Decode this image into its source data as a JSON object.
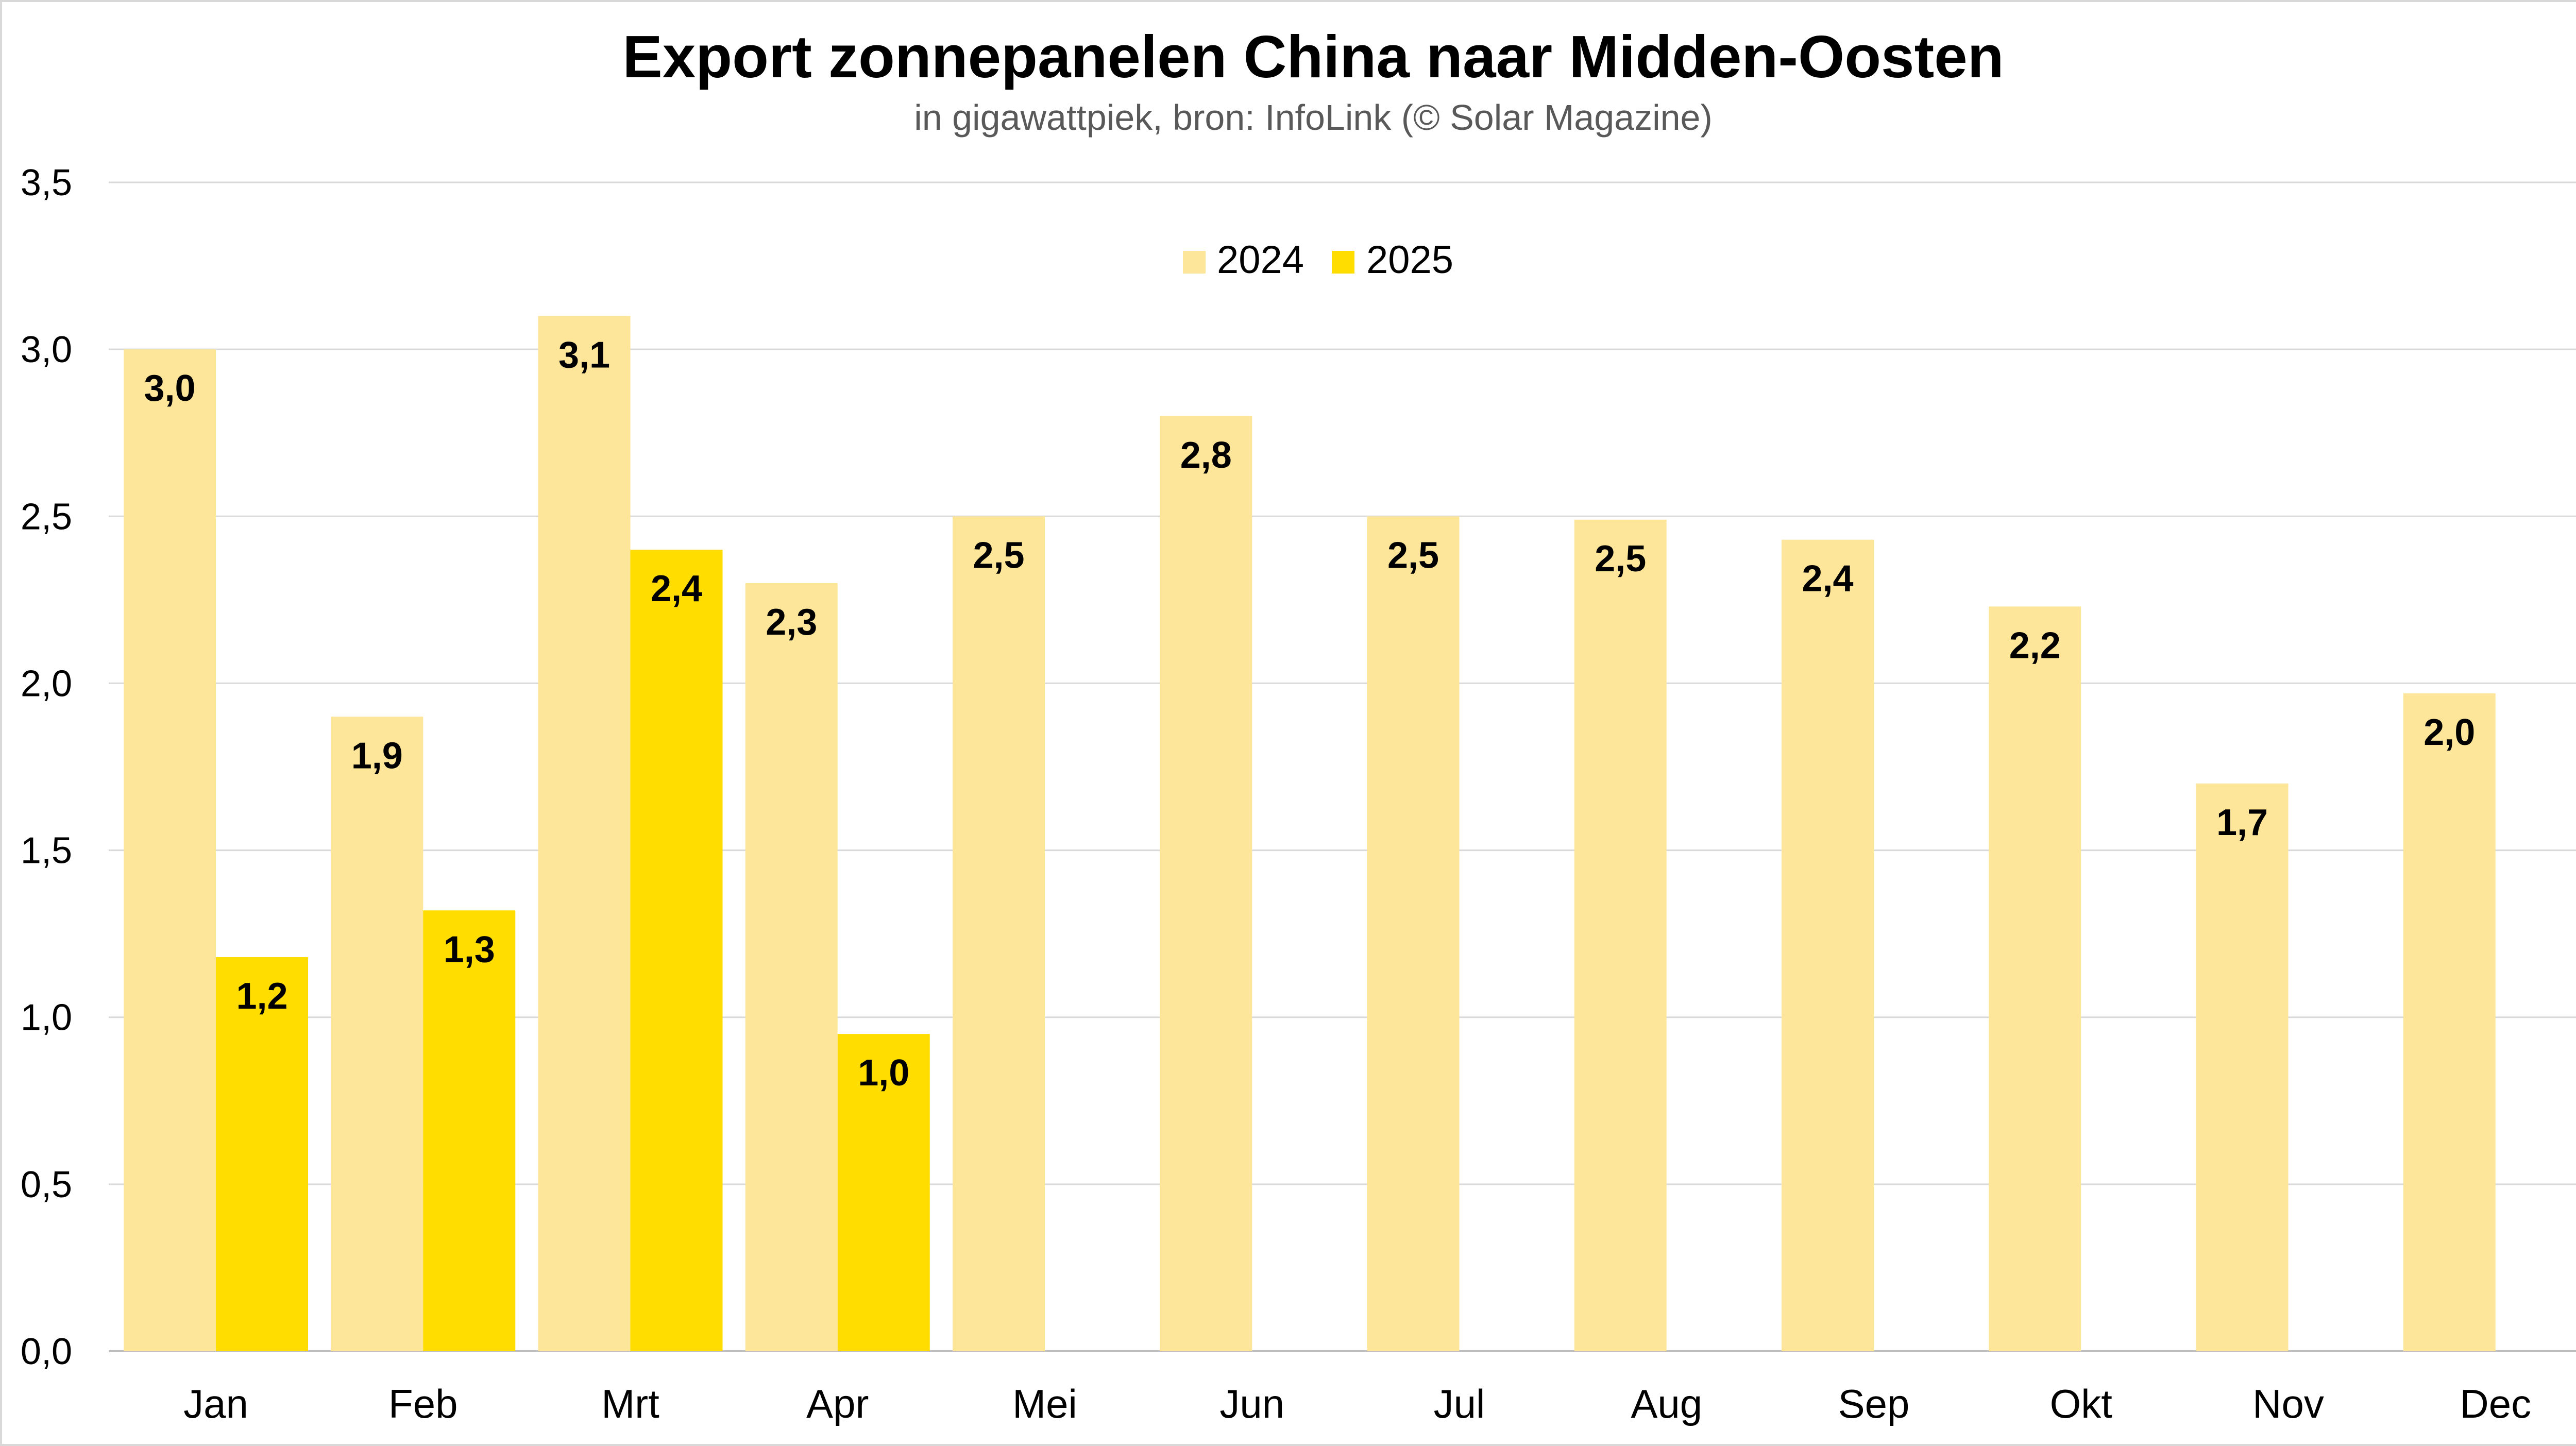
{
  "chart_data": {
    "type": "bar",
    "title": "Export zonnepanelen China naar Midden-Oosten",
    "subtitle": "in gigawattpiek, bron: InfoLink (© Solar Magazine)",
    "xlabel": "",
    "ylabel": "",
    "ylim": [
      0,
      3.5
    ],
    "yticks": [
      0,
      0.5,
      1.0,
      1.5,
      2.0,
      2.5,
      3.0,
      3.5
    ],
    "ytick_labels": [
      "0,0",
      "0,5",
      "1,0",
      "1,5",
      "2,0",
      "2,5",
      "3,0",
      "3,5"
    ],
    "grid": true,
    "legend_placement": "top-center",
    "categories": [
      "Jan",
      "Feb",
      "Mrt",
      "Apr",
      "Mei",
      "Jun",
      "Jul",
      "Aug",
      "Sep",
      "Okt",
      "Nov",
      "Dec"
    ],
    "series": [
      {
        "name": "2024",
        "color": "#FDE699",
        "values": [
          3.0,
          1.9,
          3.1,
          2.3,
          2.5,
          2.8,
          2.5,
          2.49,
          2.43,
          2.23,
          1.7,
          1.97
        ],
        "labels": [
          "3,0",
          "1,9",
          "3,1",
          "2,3",
          "2,5",
          "2,8",
          "2,5",
          "2,5",
          "2,4",
          "2,2",
          "1,7",
          "2,0"
        ]
      },
      {
        "name": "2025",
        "color": "#FFDD00",
        "values": [
          1.18,
          1.32,
          2.4,
          0.95,
          null,
          null,
          null,
          null,
          null,
          null,
          null,
          null
        ],
        "labels": [
          "1,2",
          "1,3",
          "2,4",
          "1,0",
          null,
          null,
          null,
          null,
          null,
          null,
          null,
          null
        ]
      }
    ]
  }
}
